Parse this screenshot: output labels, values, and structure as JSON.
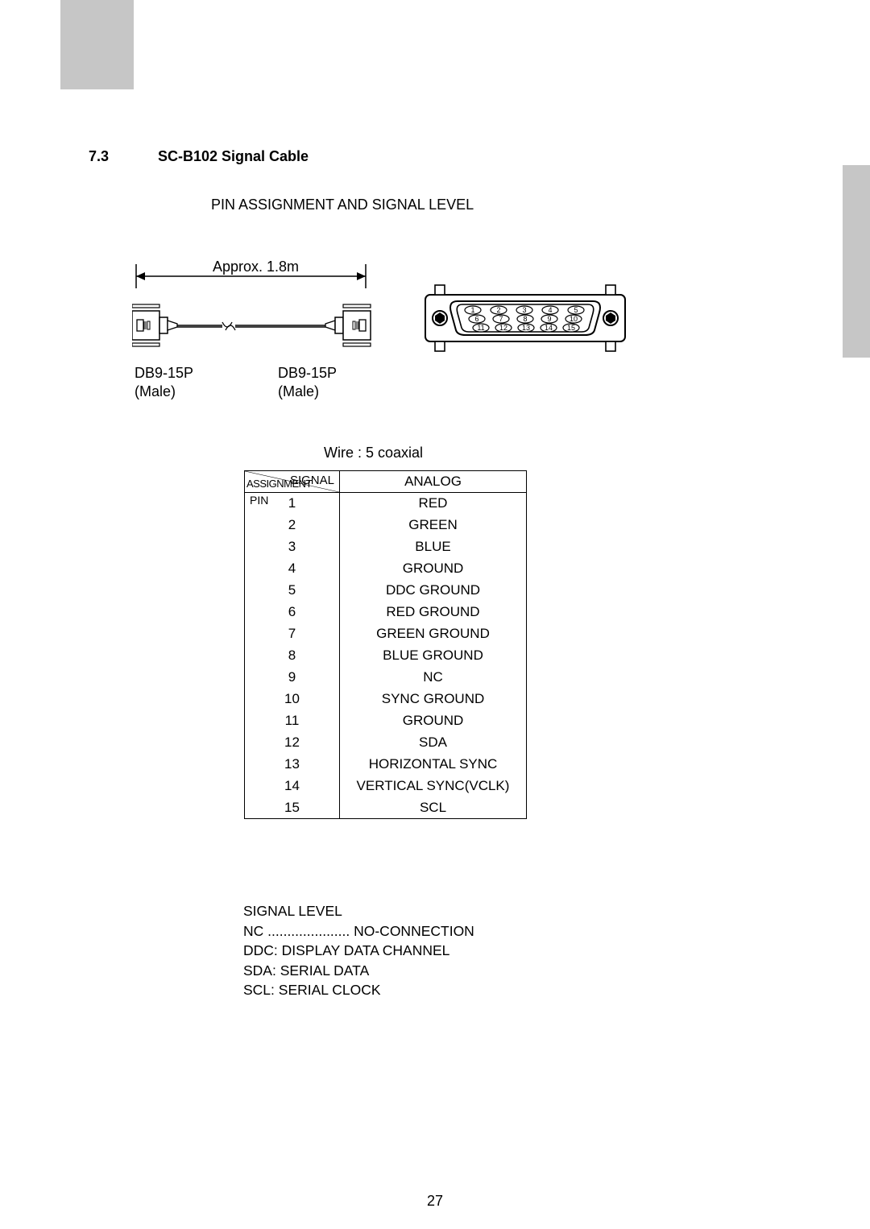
{
  "section": {
    "number": "7.3",
    "title": "SC-B102 Signal Cable"
  },
  "subtitle": "PIN ASSIGNMENT AND SIGNAL LEVEL",
  "cable": {
    "length_label": "Approx.  1.8m",
    "left_connector": "DB9-15P",
    "left_gender": "(Male)",
    "right_connector": "DB9-15P",
    "right_gender": "(Male)"
  },
  "wire_text": "Wire : 5 coaxial",
  "table": {
    "header": {
      "diag_top": "SIGNAL",
      "diag_mid": "PIN",
      "diag_bottom": "ASSIGNMENT",
      "col2": "ANALOG"
    },
    "rows": [
      {
        "pin": "1",
        "signal": "RED"
      },
      {
        "pin": "2",
        "signal": "GREEN"
      },
      {
        "pin": "3",
        "signal": "BLUE"
      },
      {
        "pin": "4",
        "signal": "GROUND"
      },
      {
        "pin": "5",
        "signal": "DDC GROUND"
      },
      {
        "pin": "6",
        "signal": "RED GROUND"
      },
      {
        "pin": "7",
        "signal": "GREEN GROUND"
      },
      {
        "pin": "8",
        "signal": "BLUE GROUND"
      },
      {
        "pin": "9",
        "signal": "NC"
      },
      {
        "pin": "10",
        "signal": "SYNC GROUND"
      },
      {
        "pin": "11",
        "signal": "GROUND"
      },
      {
        "pin": "12",
        "signal": "SDA"
      },
      {
        "pin": "13",
        "signal": "HORIZONTAL SYNC"
      },
      {
        "pin": "14",
        "signal": "VERTICAL SYNC(VCLK)"
      },
      {
        "pin": "15",
        "signal": "SCL"
      }
    ]
  },
  "legend": {
    "line1": "SIGNAL  LEVEL",
    "line2": "NC ..................... NO-CONNECTION",
    "line3": "DDC:  DISPLAY DATA CHANNEL",
    "line4": "SDA:  SERIAL DATA",
    "line5": "SCL:  SERIAL CLOCK"
  },
  "page_number": "27",
  "diagram": {
    "pin_circle_stroke": "#000000",
    "pin_font_size": 9,
    "connector_stroke": "#000000",
    "connector_fill": "#ffffff",
    "line_width": 1.5,
    "screw_fill": "#000000",
    "pins": [
      1,
      2,
      3,
      4,
      5,
      6,
      7,
      8,
      9,
      10,
      11,
      12,
      13,
      14,
      15
    ]
  },
  "colors": {
    "gray_block": "#c6c6c6",
    "text": "#000000",
    "background": "#ffffff",
    "table_border": "#000000"
  },
  "typography": {
    "body_size_pt": 13,
    "heading_weight": "bold",
    "font_family": "Arial"
  }
}
